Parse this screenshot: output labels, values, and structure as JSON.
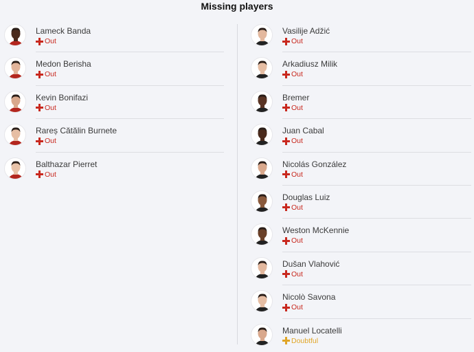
{
  "title": "Missing players",
  "colors": {
    "out": "#c8281e",
    "doubtful": "#e0a526",
    "background": "#f3f4f8"
  },
  "left": [
    {
      "name": "Lameck Banda",
      "status": "Out",
      "skin": "#4a2a1c",
      "kit": "#b3261e"
    },
    {
      "name": "Medon Berisha",
      "status": "Out",
      "skin": "#e2b49a",
      "kit": "#b3261e"
    },
    {
      "name": "Kevin Bonifazi",
      "status": "Out",
      "skin": "#d9a88c",
      "kit": "#b3261e"
    },
    {
      "name": "Rareș Cătălin Burnete",
      "status": "Out",
      "skin": "#e6bea4",
      "kit": "#b3261e"
    },
    {
      "name": "Balthazar Pierret",
      "status": "Out",
      "skin": "#e8c2a8",
      "kit": "#b3261e"
    }
  ],
  "right": [
    {
      "name": "Vasilije Adžić",
      "status": "Out",
      "skin": "#e3b89e",
      "kit": "#222"
    },
    {
      "name": "Arkadiusz Milik",
      "status": "Out",
      "skin": "#e6bea4",
      "kit": "#222"
    },
    {
      "name": "Bremer",
      "status": "Out",
      "skin": "#5a3424",
      "kit": "#222"
    },
    {
      "name": "Juan Cabal",
      "status": "Out",
      "skin": "#4a2a1c",
      "kit": "#222"
    },
    {
      "name": "Nicolás González",
      "status": "Out",
      "skin": "#d9a88c",
      "kit": "#222"
    },
    {
      "name": "Douglas Luiz",
      "status": "Out",
      "skin": "#8a5a3c",
      "kit": "#222"
    },
    {
      "name": "Weston McKennie",
      "status": "Out",
      "skin": "#6a4028",
      "kit": "#222"
    },
    {
      "name": "Dušan Vlahović",
      "status": "Out",
      "skin": "#e3b89e",
      "kit": "#222"
    },
    {
      "name": "Nicolò Savona",
      "status": "Out",
      "skin": "#e6bea4",
      "kit": "#222"
    },
    {
      "name": "Manuel Locatelli",
      "status": "Doubtful",
      "skin": "#d9a88c",
      "kit": "#222"
    }
  ]
}
